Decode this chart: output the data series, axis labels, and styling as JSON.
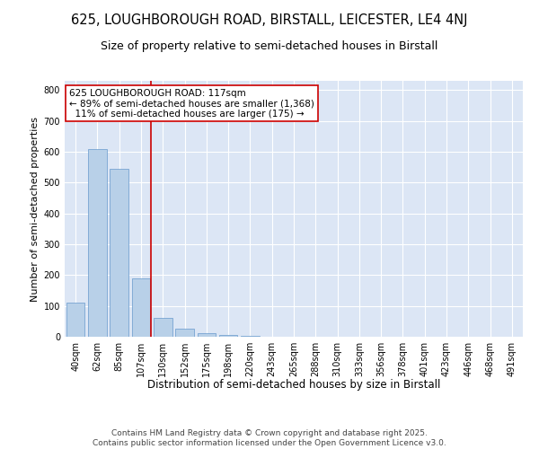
{
  "title1": "625, LOUGHBOROUGH ROAD, BIRSTALL, LEICESTER, LE4 4NJ",
  "title2": "Size of property relative to semi-detached houses in Birstall",
  "xlabel": "Distribution of semi-detached houses by size in Birstall",
  "ylabel": "Number of semi-detached properties",
  "categories": [
    "40sqm",
    "62sqm",
    "85sqm",
    "107sqm",
    "130sqm",
    "152sqm",
    "175sqm",
    "198sqm",
    "220sqm",
    "243sqm",
    "265sqm",
    "288sqm",
    "310sqm",
    "333sqm",
    "356sqm",
    "378sqm",
    "401sqm",
    "423sqm",
    "446sqm",
    "468sqm",
    "491sqm"
  ],
  "values": [
    110,
    610,
    545,
    190,
    60,
    25,
    12,
    7,
    2,
    1,
    0,
    0,
    0,
    0,
    0,
    0,
    0,
    0,
    0,
    0,
    0
  ],
  "bar_color": "#b8d0e8",
  "bar_edge_color": "#6699cc",
  "vline_x_index": 3.45,
  "vline_color": "#cc0000",
  "annotation_text": "625 LOUGHBOROUGH ROAD: 117sqm\n← 89% of semi-detached houses are smaller (1,368)\n  11% of semi-detached houses are larger (175) →",
  "annotation_box_color": "#ffffff",
  "annotation_box_edge": "#cc0000",
  "ylim": [
    0,
    830
  ],
  "yticks": [
    0,
    100,
    200,
    300,
    400,
    500,
    600,
    700,
    800
  ],
  "background_color": "#dce6f5",
  "footer_text": "Contains HM Land Registry data © Crown copyright and database right 2025.\nContains public sector information licensed under the Open Government Licence v3.0.",
  "title1_fontsize": 10.5,
  "title2_fontsize": 9,
  "xlabel_fontsize": 8.5,
  "ylabel_fontsize": 8,
  "tick_fontsize": 7,
  "annotation_fontsize": 7.5,
  "footer_fontsize": 6.5
}
